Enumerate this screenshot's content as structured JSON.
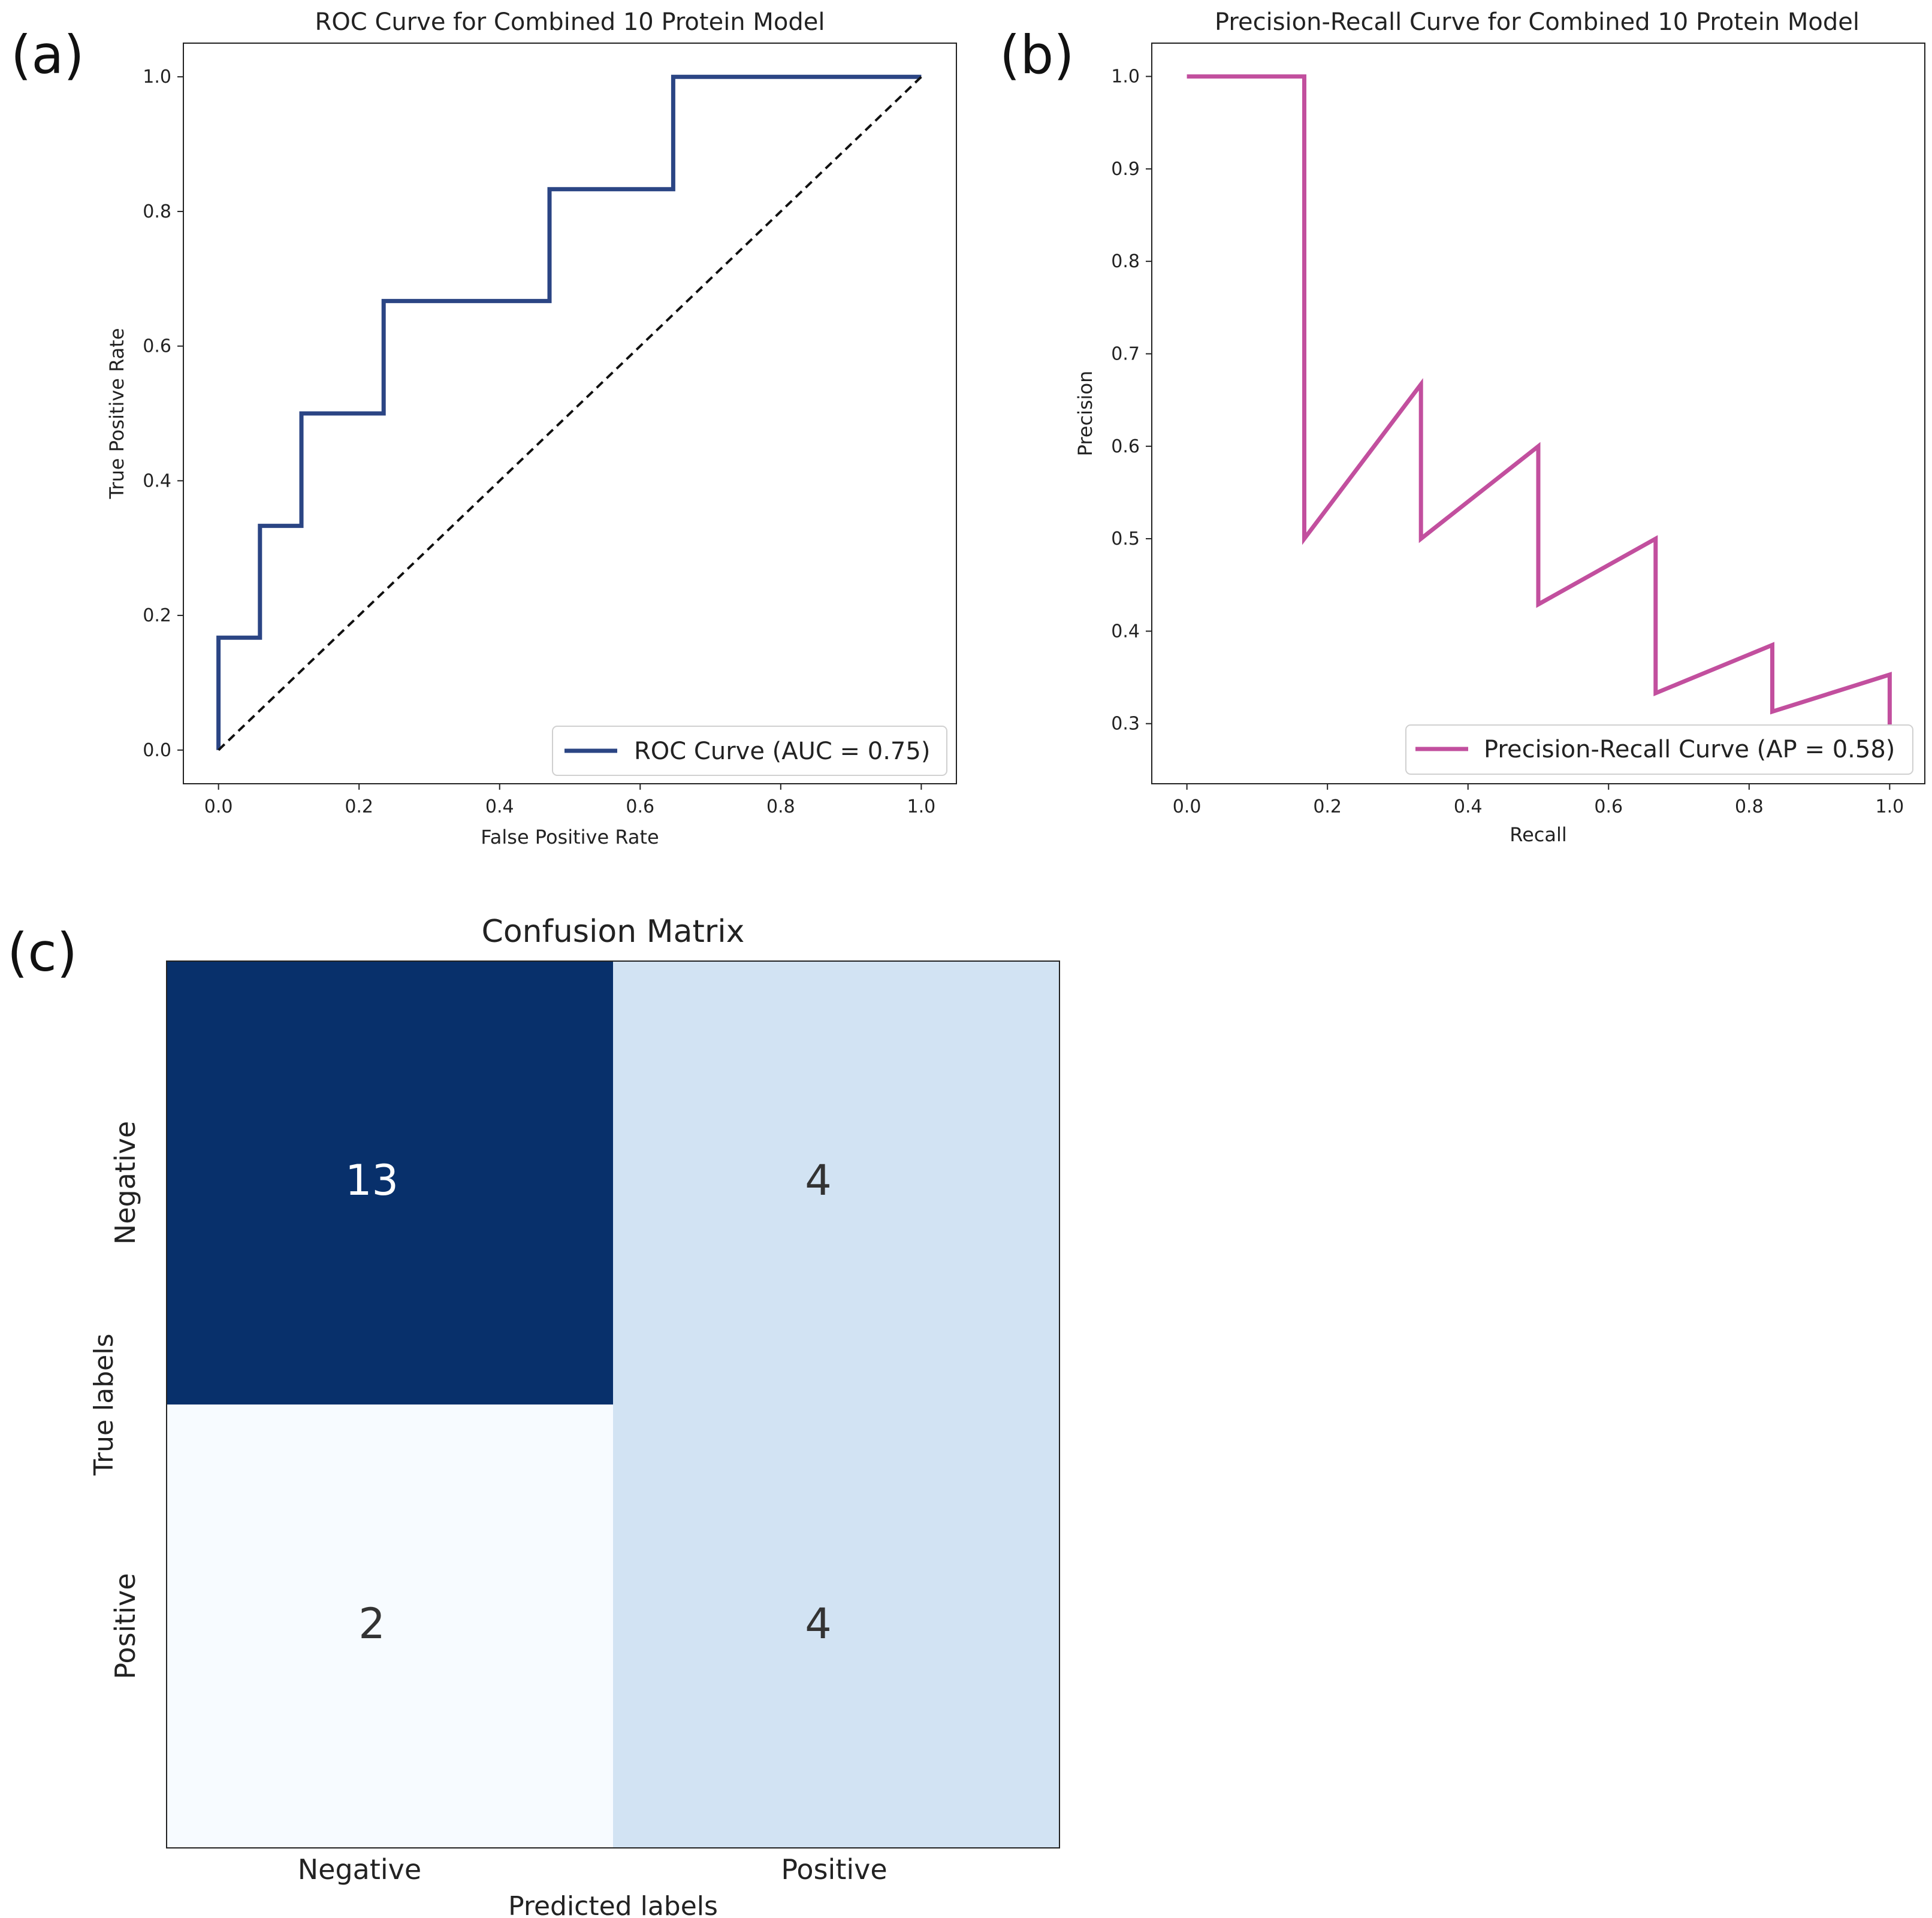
{
  "panels": {
    "a": "(a)",
    "b": "(b)",
    "c": "(c)"
  },
  "chart_data": [
    {
      "type": "line",
      "title": "ROC Curve for Combined 10 Protein Model",
      "xlabel": "False Positive Rate",
      "ylabel": "True Positive Rate",
      "xlim": [
        -0.05,
        1.05
      ],
      "ylim": [
        -0.05,
        1.05
      ],
      "xticks": [
        "0.0",
        "0.2",
        "0.4",
        "0.6",
        "0.8",
        "1.0"
      ],
      "yticks": [
        "0.0",
        "0.2",
        "0.4",
        "0.6",
        "0.8",
        "1.0"
      ],
      "grid": false,
      "legend_position": "lower-right",
      "series": [
        {
          "name": "ROC Curve (AUC = 0.75)",
          "color": "#2b4584",
          "x": [
            0.0,
            0.0,
            0.059,
            0.059,
            0.118,
            0.118,
            0.235,
            0.235,
            0.471,
            0.471,
            0.647,
            0.647,
            1.0
          ],
          "y": [
            0.0,
            0.167,
            0.167,
            0.333,
            0.333,
            0.5,
            0.5,
            0.667,
            0.667,
            0.833,
            0.833,
            1.0,
            1.0
          ]
        },
        {
          "name": "",
          "style": "dashed",
          "color": "#111111",
          "x": [
            0.0,
            1.0
          ],
          "y": [
            0.0,
            1.0
          ]
        }
      ]
    },
    {
      "type": "line",
      "title": "Precision-Recall Curve for Combined 10 Protein Model",
      "xlabel": "Recall",
      "ylabel": "Precision",
      "xlim": [
        -0.05,
        1.05
      ],
      "ylim": [
        0.235,
        1.036
      ],
      "xticks": [
        "0.0",
        "0.2",
        "0.4",
        "0.6",
        "0.8",
        "1.0"
      ],
      "yticks": [
        "0.3",
        "0.4",
        "0.5",
        "0.6",
        "0.7",
        "0.8",
        "0.9",
        "1.0"
      ],
      "grid": false,
      "legend_position": "lower-right",
      "series": [
        {
          "name": "Precision-Recall Curve (AP = 0.58)",
          "color": "#c24f9e",
          "x": [
            0.0,
            0.167,
            0.167,
            0.333,
            0.333,
            0.5,
            0.5,
            0.667,
            0.667,
            0.833,
            0.833,
            1.0,
            1.0
          ],
          "y": [
            1.0,
            1.0,
            0.5,
            0.667,
            0.5,
            0.6,
            0.429,
            0.5,
            0.333,
            0.385,
            0.313,
            0.353,
            0.29
          ]
        }
      ]
    },
    {
      "type": "heatmap",
      "title": "Confusion Matrix",
      "xlabel": "Predicted labels",
      "ylabel": "True labels",
      "categories": [
        "Negative",
        "Positive"
      ],
      "values": [
        [
          13,
          4
        ],
        [
          2,
          4
        ]
      ],
      "colors": {
        "low": "#f7fbff",
        "mid": "#d2e3f3",
        "high": "#08306b",
        "text_dark": "#333333",
        "text_light": "#ffffff"
      }
    }
  ]
}
